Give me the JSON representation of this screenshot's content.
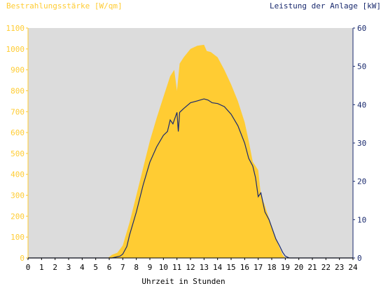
{
  "chart_data": {
    "type": "area",
    "title_left": "Bestrahlungsstärke [W/qm]",
    "title_right": "Leistung der Anlage [kW]",
    "xlabel": "Uhrzeit in Stunden",
    "x_ticks": [
      "0",
      "1",
      "2",
      "3",
      "4",
      "5",
      "6",
      "7",
      "8",
      "9",
      "10",
      "11",
      "12",
      "13",
      "14",
      "15",
      "16",
      "17",
      "18",
      "19",
      "20",
      "21",
      "22",
      "23",
      "24"
    ],
    "y_left_ticks": [
      "0",
      "100",
      "200",
      "300",
      "400",
      "500",
      "600",
      "700",
      "800",
      "900",
      "1000",
      "1100"
    ],
    "y_right_ticks": [
      "0",
      "10",
      "20",
      "30",
      "40",
      "50",
      "60"
    ],
    "xlim": [
      0,
      24
    ],
    "ylim_left": [
      0,
      1100
    ],
    "ylim_right": [
      0,
      60
    ],
    "grid": false,
    "colors": {
      "plot_background": "#dcdcdc",
      "irradiance": "#ffcc33",
      "power": "#1a2a6e",
      "left_axis_text": "#ffcc33",
      "right_axis_text": "#1a2a6e",
      "x_axis_text": "#000000"
    },
    "series": [
      {
        "name": "Bestrahlungsstärke [W/qm]",
        "axis": "left",
        "x": [
          0,
          5.9,
          6.2,
          6.6,
          7.0,
          7.5,
          8.0,
          8.5,
          9.0,
          9.5,
          10.0,
          10.5,
          10.8,
          11.0,
          11.2,
          11.5,
          12.0,
          12.5,
          13.0,
          13.2,
          13.5,
          14.0,
          14.5,
          15.0,
          15.5,
          16.0,
          16.3,
          16.6,
          17.0,
          17.2,
          17.5,
          18.0,
          18.5,
          18.8,
          19.0,
          19.5,
          24
        ],
        "y": [
          0,
          0,
          15,
          25,
          60,
          170,
          300,
          430,
          560,
          670,
          770,
          870,
          900,
          800,
          930,
          960,
          1000,
          1015,
          1020,
          990,
          985,
          960,
          900,
          830,
          750,
          650,
          560,
          460,
          420,
          300,
          250,
          150,
          60,
          15,
          0,
          0,
          0
        ]
      },
      {
        "name": "Leistung der Anlage [kW]",
        "axis": "right",
        "x": [
          0,
          6.2,
          6.8,
          7.0,
          7.3,
          7.5,
          8.0,
          8.5,
          9.0,
          9.5,
          10.0,
          10.3,
          10.5,
          10.7,
          11.0,
          11.1,
          11.2,
          11.5,
          12.0,
          12.5,
          13.0,
          13.3,
          13.6,
          14.0,
          14.5,
          15.0,
          15.5,
          16.0,
          16.3,
          16.6,
          16.8,
          17.0,
          17.2,
          17.5,
          17.8,
          18.0,
          18.3,
          18.6,
          18.8,
          19.0,
          19.3,
          24
        ],
        "y": [
          0,
          0,
          0.5,
          1,
          3,
          6,
          12,
          19,
          25,
          29,
          32,
          33,
          36,
          35,
          38,
          33,
          38,
          39,
          40.5,
          41,
          41.5,
          41.2,
          40.5,
          40.3,
          39.5,
          37.5,
          34.5,
          30,
          26,
          24,
          21,
          16,
          17,
          12,
          10,
          8,
          5,
          3,
          1.5,
          0.5,
          0,
          0
        ]
      }
    ]
  }
}
